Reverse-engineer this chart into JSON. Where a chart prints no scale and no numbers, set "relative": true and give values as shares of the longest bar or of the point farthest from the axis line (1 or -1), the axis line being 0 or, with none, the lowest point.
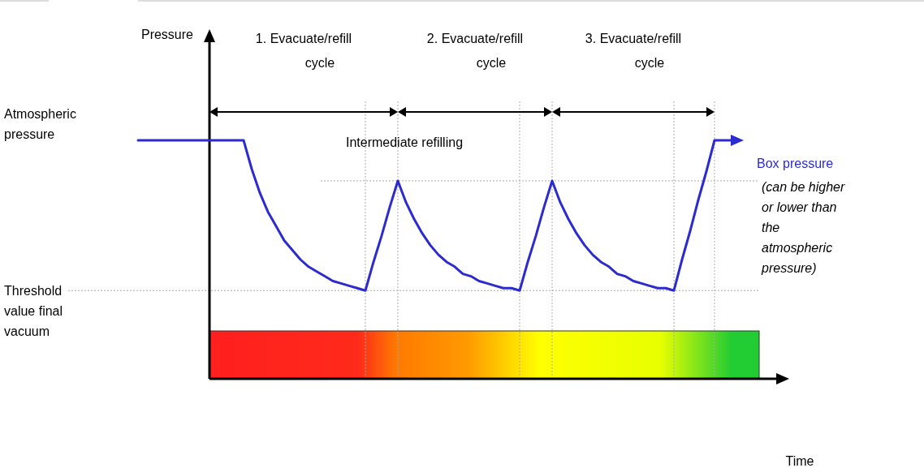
{
  "chart_data": {
    "type": "line",
    "relative": true,
    "categories": [
      null,
      null,
      null,
      null,
      null,
      null,
      null,
      null,
      null,
      null,
      null,
      null,
      null,
      null,
      null,
      null,
      null,
      null,
      null,
      null,
      null,
      null,
      null,
      null,
      null,
      null,
      null,
      null,
      null,
      null,
      null,
      null,
      null,
      null,
      null,
      null,
      null,
      null,
      null,
      null,
      null,
      null,
      null,
      null,
      null,
      null,
      null,
      null,
      null,
      null,
      null,
      null,
      null,
      null,
      null,
      null,
      null,
      null,
      null,
      null,
      null,
      null,
      null,
      null,
      null,
      null,
      null,
      null,
      null,
      null,
      null,
      null
    ],
    "series": [
      {
        "name": "Box pressure",
        "color": "#2b2bd0",
        "values": [
          1,
          1,
          1,
          1,
          1,
          1,
          1,
          1,
          1,
          1,
          1,
          1,
          1,
          1,
          0.88,
          0.78,
          0.7,
          0.64,
          0.58,
          0.54,
          0.5,
          0.47,
          0.45,
          0.43,
          0.41,
          0.4,
          0.39,
          0.38,
          0.37,
          0.49,
          0.6,
          0.72,
          0.83,
          0.74,
          0.67,
          0.61,
          0.56,
          0.52,
          0.49,
          0.47,
          0.44,
          0.43,
          0.41,
          0.4,
          0.39,
          0.38,
          0.38,
          0.37,
          0.49,
          0.6,
          0.72,
          0.83,
          0.74,
          0.67,
          0.61,
          0.56,
          0.52,
          0.49,
          0.47,
          0.44,
          0.43,
          0.41,
          0.4,
          0.39,
          0.38,
          0.38,
          0.37,
          0.5,
          0.62,
          0.75,
          0.87,
          1
        ]
      }
    ],
    "ref_lines": [
      {
        "axis": "y",
        "value": 0.83,
        "label": "Intermediate refilling",
        "color": "#aaaaaa",
        "line_style": "dotted"
      },
      {
        "axis": "y",
        "value": 0.37,
        "label": "Threshold value final vacuum",
        "color": "#aaaaaa",
        "line_style": "dotted"
      }
    ],
    "annotations": [
      "1. Evacuate/refill cycle",
      "2. Evacuate/refill cycle",
      "3. Evacuate/refill cycle",
      "Atmospheric pressure",
      "(can be higher or lower than the atmospheric pressure)",
      "Pressure",
      "Time"
    ],
    "grid": "x",
    "marker": "none",
    "line_style": "solid"
  }
}
